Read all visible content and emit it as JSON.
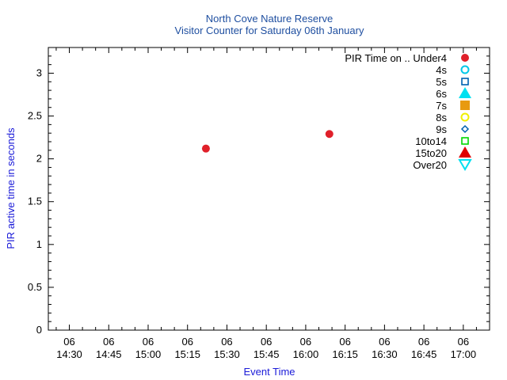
{
  "chart_data": {
    "type": "scatter",
    "title": "North Cove Nature Reserve",
    "subtitle": "Visitor Counter for Saturday 06th January",
    "xlabel": "Event Time",
    "ylabel": "PIR active time in seconds",
    "xlim": [
      "14:22",
      "17:10"
    ],
    "ylim": [
      0,
      3.3
    ],
    "yticks": [
      "0",
      "0.5",
      "1",
      "1.5",
      "2",
      "2.5",
      "3"
    ],
    "xticks": [
      {
        "day": "06",
        "time": "14:30"
      },
      {
        "day": "06",
        "time": "14:45"
      },
      {
        "day": "06",
        "time": "15:00"
      },
      {
        "day": "06",
        "time": "15:15"
      },
      {
        "day": "06",
        "time": "15:30"
      },
      {
        "day": "06",
        "time": "15:45"
      },
      {
        "day": "06",
        "time": "16:00"
      },
      {
        "day": "06",
        "time": "16:15"
      },
      {
        "day": "06",
        "time": "16:30"
      },
      {
        "day": "06",
        "time": "16:45"
      },
      {
        "day": "06",
        "time": "17:00"
      }
    ],
    "grid": false,
    "legend_position": "top-right",
    "series": [
      {
        "name": "PIR Time on .. Under4",
        "marker": "circle-filled",
        "color": "#e0202a",
        "points": [
          {
            "x": "15:22",
            "y": 2.12
          },
          {
            "x": "16:09",
            "y": 2.29
          }
        ]
      },
      {
        "name": "4s",
        "marker": "circle-open",
        "color": "#00c8e8",
        "points": []
      },
      {
        "name": "5s",
        "marker": "square-open",
        "color": "#0060b0",
        "points": []
      },
      {
        "name": "6s",
        "marker": "triangle-filled",
        "color": "#00e0f0",
        "points": []
      },
      {
        "name": "7s",
        "marker": "square-filled",
        "color": "#e89a10",
        "points": []
      },
      {
        "name": "8s",
        "marker": "circle-open",
        "color": "#f0f000",
        "points": []
      },
      {
        "name": "9s",
        "marker": "diamond-open",
        "color": "#0060b0",
        "points": []
      },
      {
        "name": "10to14",
        "marker": "square-open",
        "color": "#00d800",
        "points": []
      },
      {
        "name": "15to20",
        "marker": "triangle-filled",
        "color": "#e00000",
        "points": []
      },
      {
        "name": "Over20",
        "marker": "triangle-down-open",
        "color": "#00e0f0",
        "points": []
      }
    ]
  }
}
